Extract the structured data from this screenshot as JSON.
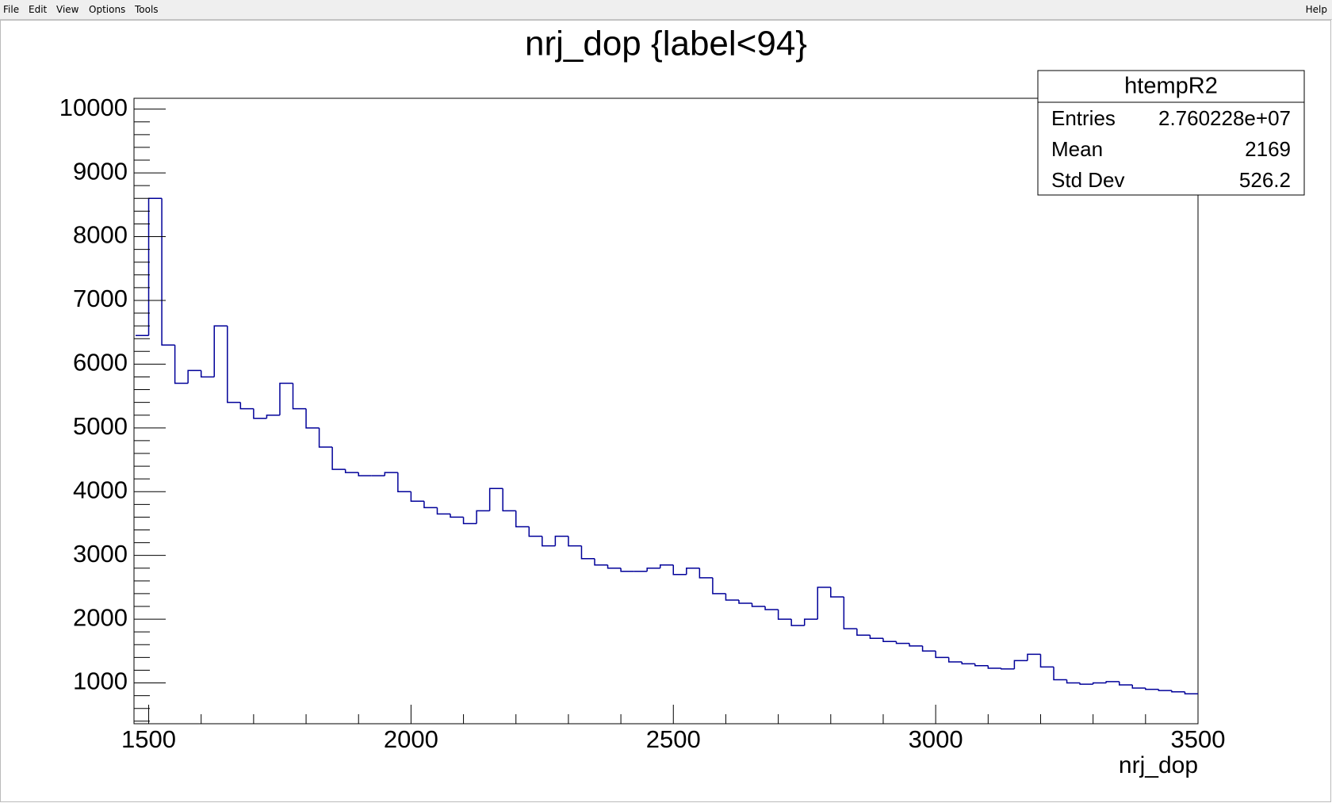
{
  "menu": {
    "items": [
      "File",
      "Edit",
      "View",
      "Options",
      "Tools"
    ],
    "help": "Help"
  },
  "chart_data": {
    "type": "histogram",
    "title": "nrj_dop {label<94}",
    "x_label": "nrj_dop",
    "color": "#000099",
    "xlim": [
      1472,
      3500
    ],
    "ylim": [
      360,
      10170
    ],
    "xticks": [
      1500,
      2000,
      2500,
      3000,
      3500
    ],
    "xminorticks": [
      1600,
      1700,
      1800,
      1900,
      2100,
      2200,
      2300,
      2400,
      2600,
      2700,
      2800,
      2900,
      3100,
      3200,
      3300,
      3400
    ],
    "yticks": [
      1000,
      2000,
      3000,
      4000,
      5000,
      6000,
      7000,
      8000,
      9000,
      10000
    ],
    "yminorticks": [
      400,
      600,
      800,
      1200,
      1400,
      1600,
      1800,
      2200,
      2400,
      2600,
      2800,
      3200,
      3400,
      3600,
      3800,
      4200,
      4400,
      4600,
      4800,
      5200,
      5400,
      5600,
      5800,
      6200,
      6400,
      6600,
      6800,
      7200,
      7400,
      7600,
      7800,
      8200,
      8400,
      8600,
      8800,
      9200,
      9400,
      9600,
      9800
    ],
    "bins": [
      1475,
      1500,
      1525,
      1550,
      1575,
      1600,
      1625,
      1650,
      1675,
      1700,
      1725,
      1750,
      1775,
      1800,
      1825,
      1850,
      1875,
      1900,
      1925,
      1950,
      1975,
      2000,
      2025,
      2050,
      2075,
      2100,
      2125,
      2150,
      2175,
      2200,
      2225,
      2250,
      2275,
      2300,
      2325,
      2350,
      2375,
      2400,
      2425,
      2450,
      2475,
      2500,
      2525,
      2550,
      2575,
      2600,
      2625,
      2650,
      2675,
      2700,
      2725,
      2750,
      2775,
      2800,
      2825,
      2850,
      2875,
      2900,
      2925,
      2950,
      2975,
      3000,
      3025,
      3050,
      3075,
      3100,
      3125,
      3150,
      3175,
      3200,
      3225,
      3250,
      3275,
      3300,
      3325,
      3350,
      3375,
      3400,
      3425,
      3450,
      3475,
      3500
    ],
    "values": [
      6450,
      8600,
      6300,
      5700,
      5900,
      5800,
      6600,
      5400,
      5300,
      5150,
      5200,
      5700,
      5300,
      5000,
      4700,
      4350,
      4300,
      4250,
      4250,
      4300,
      4000,
      3850,
      3750,
      3650,
      3600,
      3500,
      3700,
      4050,
      3700,
      3450,
      3300,
      3150,
      3300,
      3150,
      2950,
      2850,
      2800,
      2750,
      2750,
      2800,
      2850,
      2700,
      2800,
      2650,
      2400,
      2300,
      2250,
      2200,
      2150,
      2000,
      1900,
      2000,
      2500,
      2350,
      1850,
      1750,
      1700,
      1650,
      1620,
      1580,
      1500,
      1400,
      1330,
      1300,
      1270,
      1230,
      1220,
      1350,
      1450,
      1250,
      1050,
      1000,
      980,
      1000,
      1020,
      970,
      920,
      900,
      880,
      860,
      830
    ],
    "stats": {
      "title": "htempR2",
      "rows": [
        [
          "Entries",
          "2.760228e+07"
        ],
        [
          "Mean",
          "2169"
        ],
        [
          "Std Dev",
          "526.2"
        ]
      ]
    }
  }
}
